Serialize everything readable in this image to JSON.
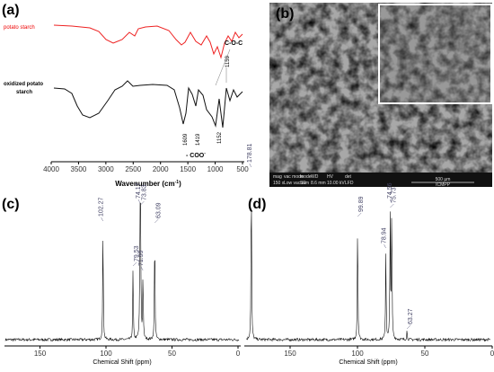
{
  "panels": [
    {
      "label": "(a)",
      "series_labels": [
        "potato starch",
        "oxidized potato",
        "starch"
      ],
      "annotations": [
        "C-O-C",
        "1159",
        "1609",
        "1419",
        "1152",
        "- COO",
        "-"
      ],
      "xticks": [
        4000,
        3500,
        3000,
        2500,
        2000,
        1500,
        1000,
        500
      ],
      "xlabel": "Wavenumber (cm",
      "xlabel_sup": "-1",
      "xlabel_end": ")"
    },
    {
      "label": "(b)",
      "sem_fields": [
        "mag",
        "vac mode",
        "mode",
        "WD",
        "HV",
        "det"
      ],
      "sem_values": [
        "150 x",
        "Low vacuum",
        "SE",
        "8.6 mm",
        "10.00 kV",
        "LFD"
      ],
      "scale": "500 µm",
      "brand": "ICMPP"
    },
    {
      "label": "(c)",
      "peaks": [
        102.27,
        79.53,
        74.17,
        73.83,
        71.99,
        63.09
      ],
      "xticks": [
        150,
        100,
        50,
        0
      ],
      "xlabel": "Chemical Shift (ppm)"
    },
    {
      "label": "(d)",
      "peaks": [
        178.81,
        99.89,
        78.94,
        75.73,
        74.56,
        63.27
      ],
      "xticks": [
        150,
        100,
        50,
        0
      ],
      "xlabel": "Chemical Shift (ppm)"
    }
  ]
}
